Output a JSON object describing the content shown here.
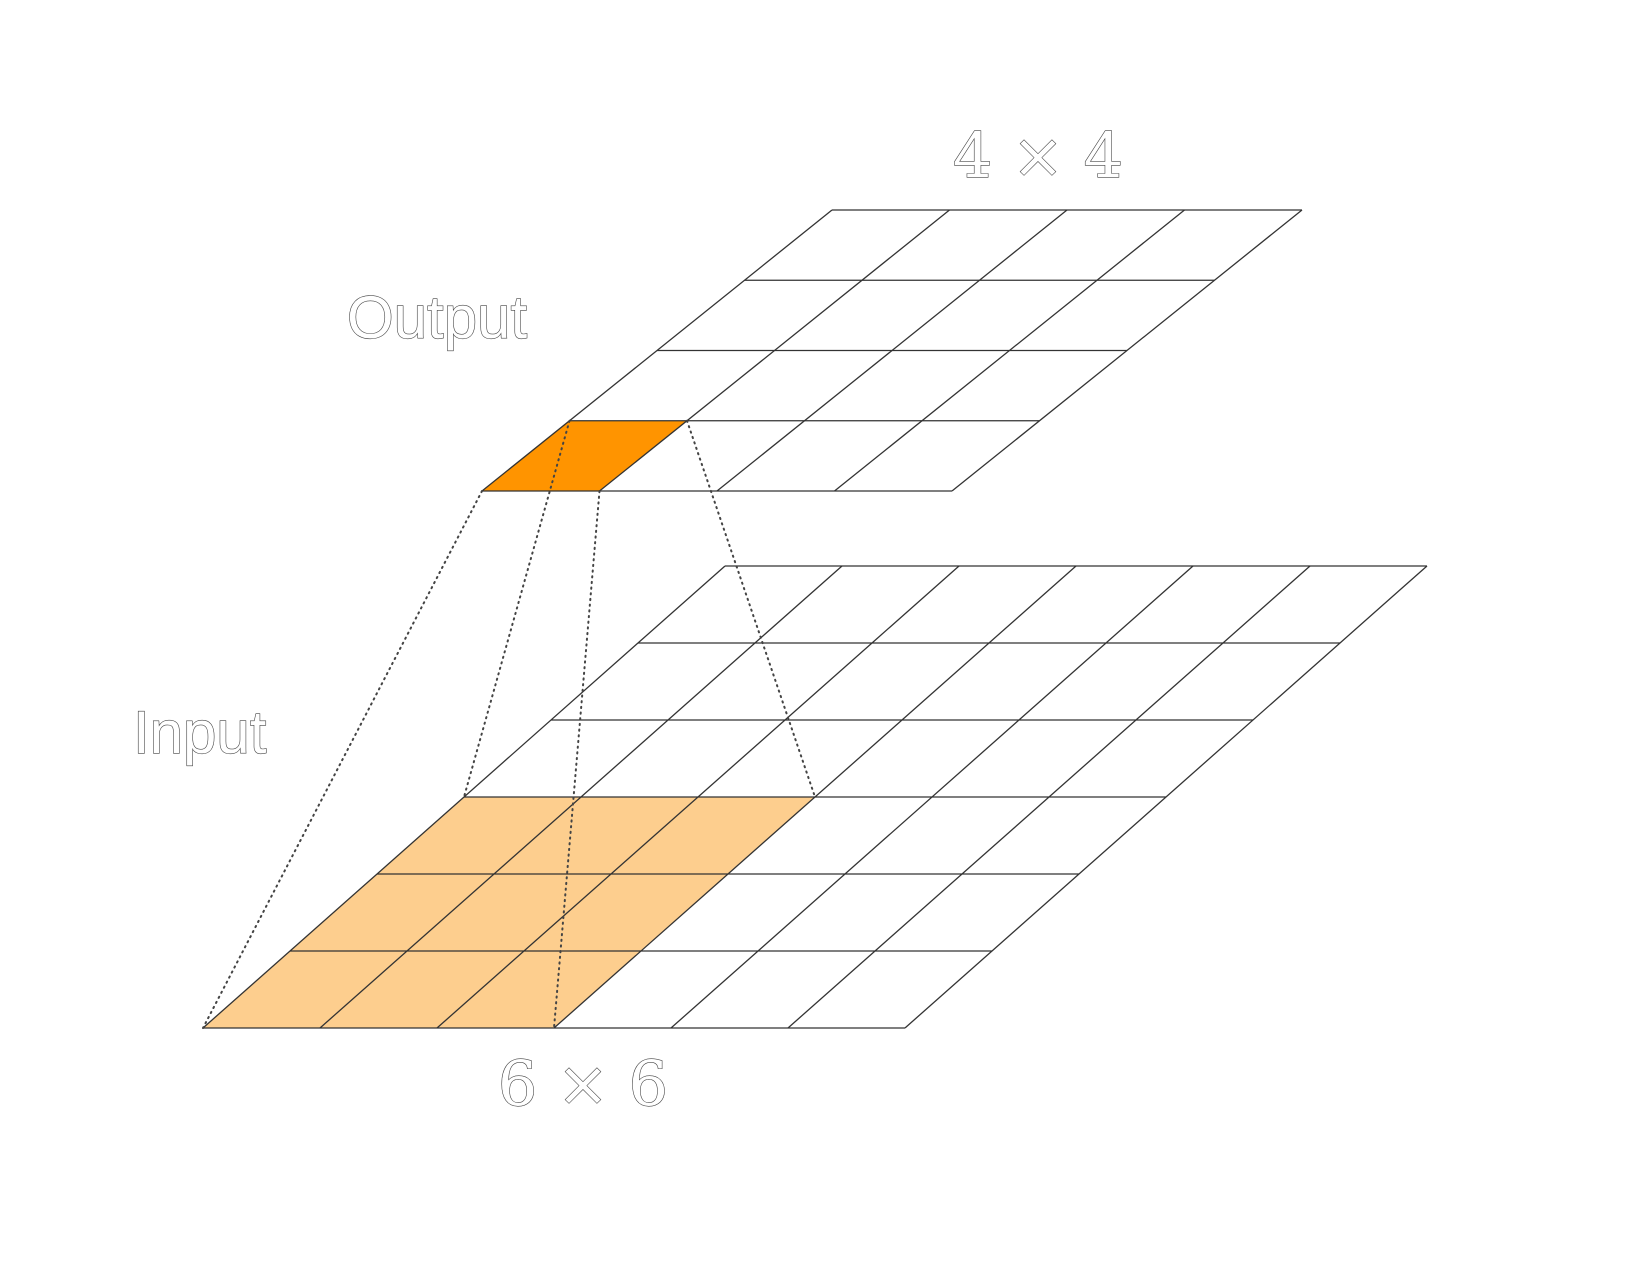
{
  "labels": {
    "output": "Output",
    "input": "Input",
    "output_size": "4 × 4",
    "input_size": "6 × 6"
  },
  "output_grid": {
    "rows": 4,
    "cols": 4,
    "highlighted_cells": [
      [
        3,
        0
      ]
    ],
    "highlight_color": "#ff9400"
  },
  "input_grid": {
    "rows": 6,
    "cols": 6,
    "receptive_field": {
      "row_start": 3,
      "col_start": 0,
      "size": 3
    },
    "highlight_color": "#fdce8e"
  },
  "colors": {
    "line": "#333333",
    "text_outline": "#444444"
  }
}
